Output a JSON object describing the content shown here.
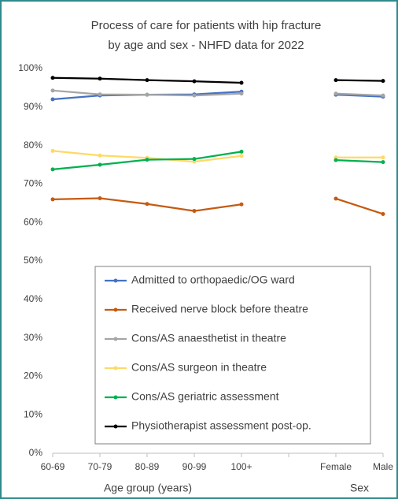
{
  "chart_data": {
    "type": "line",
    "title": [
      "Process of care for patients with hip fracture",
      "by age and sex - NHFD data for 2022"
    ],
    "xlabel": "Age group (years)",
    "xlabel2": "Sex",
    "categories": [
      "60-69",
      "70-79",
      "80-89",
      "90-99",
      "100+",
      null,
      "Female",
      "Male"
    ],
    "ylim": [
      0,
      100
    ],
    "yticks": [
      {
        "value": 0,
        "label": "0%"
      },
      {
        "value": 10,
        "label": "10%"
      },
      {
        "value": 20,
        "label": "20%"
      },
      {
        "value": 30,
        "label": "30%"
      },
      {
        "value": 40,
        "label": "40%"
      },
      {
        "value": 50,
        "label": "50%"
      },
      {
        "value": 60,
        "label": "60%"
      },
      {
        "value": 70,
        "label": "70%"
      },
      {
        "value": 80,
        "label": "80%"
      },
      {
        "value": 90,
        "label": "90%"
      },
      {
        "value": 100,
        "label": "100%"
      }
    ],
    "grid": false,
    "legend": "center",
    "series": [
      {
        "name": "Admitted to orthopaedic/OG ward",
        "color": "#4472c4",
        "values": [
          92.0,
          93.0,
          93.2,
          93.3,
          94.0,
          null,
          93.2,
          92.7
        ]
      },
      {
        "name": "Received nerve block before theatre",
        "color": "#c55a11",
        "values": [
          66.0,
          66.3,
          64.8,
          63.0,
          64.7,
          null,
          66.2,
          62.2
        ]
      },
      {
        "name": "Cons/AS anaesthetist in theatre",
        "color": "#a5a5a5",
        "values": [
          94.3,
          93.3,
          93.2,
          93.0,
          93.5,
          null,
          93.5,
          93.0
        ]
      },
      {
        "name": "Cons/AS surgeon in theatre",
        "color": "#ffd966",
        "values": [
          78.6,
          77.4,
          76.8,
          75.8,
          77.3,
          null,
          76.9,
          76.9
        ]
      },
      {
        "name": "Cons/AS geriatric assessment",
        "color": "#00b050",
        "values": [
          73.8,
          75.0,
          76.3,
          76.5,
          78.4,
          null,
          76.2,
          75.7
        ]
      },
      {
        "name": "Physiotherapist assessment post-op.",
        "color": "#000000",
        "values": [
          97.6,
          97.4,
          97.0,
          96.7,
          96.3,
          null,
          97.0,
          96.8
        ]
      }
    ]
  }
}
